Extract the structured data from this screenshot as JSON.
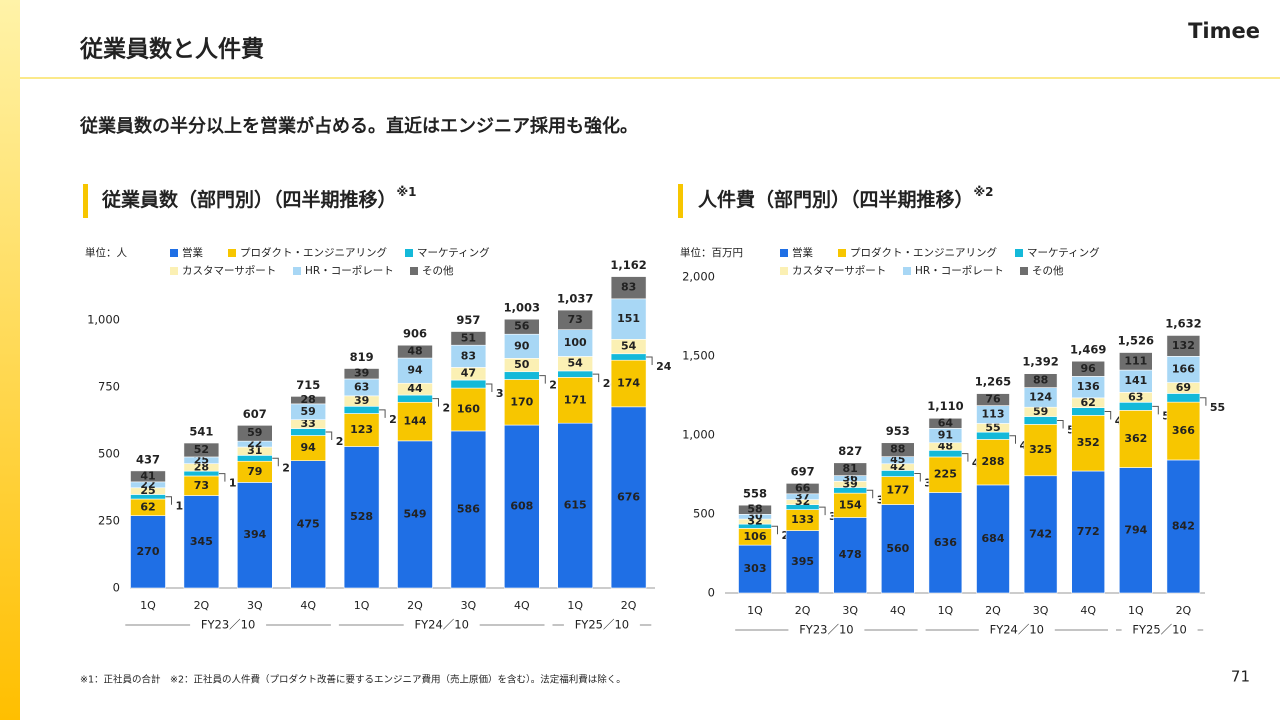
{
  "header": {
    "title": "従業員数と人件費",
    "logo": "Timee",
    "subtitle": "従業員数の半分以上を営業が占める。直近はエンジニア採用も強化。"
  },
  "footnote": "※1：正社員の合計　※2：正社員の人件費（プロダクト改善に要するエンジニア費用（売上原価）を含む）。法定福利費は除く。",
  "page_number": "71",
  "chart_data": [
    {
      "type": "stacked-bar",
      "title": "従業員数（部門別）（四半期推移）",
      "title_note": "※1",
      "unit": "単位：人",
      "categories": [
        "1Q",
        "2Q",
        "3Q",
        "4Q",
        "1Q",
        "2Q",
        "3Q",
        "4Q",
        "1Q",
        "2Q"
      ],
      "groups": [
        {
          "label": "FY23／10",
          "count": 4
        },
        {
          "label": "FY24／10",
          "count": 4
        },
        {
          "label": "FY25／10",
          "count": 2
        }
      ],
      "ylim": [
        0,
        1250
      ],
      "yticks": [
        0,
        250,
        500,
        750,
        {
          "value": 1000,
          "label": "1,000"
        }
      ],
      "grid": false,
      "series": [
        {
          "name": "営業",
          "color": "#1f6fe5",
          "values": [
            270,
            345,
            394,
            475,
            528,
            549,
            586,
            608,
            615,
            676
          ]
        },
        {
          "name": "プロダクト・エンジニアリング",
          "color": "#f7c600",
          "values": [
            62,
            73,
            79,
            94,
            123,
            144,
            160,
            170,
            171,
            174
          ]
        },
        {
          "name": "マーケティング",
          "color": "#14b9d9",
          "values": [
            17,
            18,
            22,
            26,
            27,
            27,
            30,
            29,
            24,
            24
          ]
        },
        {
          "name": "カスタマーサポート",
          "color": "#fbf0b4",
          "values": [
            25,
            28,
            31,
            33,
            39,
            44,
            47,
            50,
            54,
            54
          ]
        },
        {
          "name": "HR・コーポレート",
          "color": "#a8d7f5",
          "values": [
            22,
            25,
            22,
            59,
            63,
            94,
            83,
            90,
            100,
            151
          ]
        },
        {
          "name": "その他",
          "color": "#6e6e6e",
          "values": [
            41,
            52,
            59,
            28,
            39,
            48,
            51,
            56,
            73,
            83
          ]
        }
      ],
      "totals": [
        437,
        541,
        607,
        715,
        819,
        906,
        957,
        1003,
        1037,
        1162
      ],
      "total_labels": [
        "437",
        "541",
        "607",
        "715",
        "819",
        "906",
        "957",
        "1,003",
        "1,037",
        "1,162"
      ]
    },
    {
      "type": "stacked-bar",
      "title": "人件費（部門別）（四半期推移）",
      "title_note": "※2",
      "unit": "単位：百万円",
      "categories": [
        "1Q",
        "2Q",
        "3Q",
        "4Q",
        "1Q",
        "2Q",
        "3Q",
        "4Q",
        "1Q",
        "2Q"
      ],
      "groups": [
        {
          "label": "FY23／10",
          "count": 4
        },
        {
          "label": "FY24／10",
          "count": 4
        },
        {
          "label": "FY25／10",
          "count": 2
        }
      ],
      "ylim": [
        0,
        2000
      ],
      "yticks": [
        0,
        500,
        {
          "value": 1000,
          "label": "1,000"
        },
        {
          "value": 1500,
          "label": "1,500"
        },
        {
          "value": 2000,
          "label": "2,000"
        }
      ],
      "grid": false,
      "series": [
        {
          "name": "営業",
          "color": "#1f6fe5",
          "values": [
            303,
            395,
            478,
            560,
            636,
            684,
            742,
            772,
            794,
            842
          ]
        },
        {
          "name": "プロダクト・エンジニアリング",
          "color": "#f7c600",
          "values": [
            106,
            133,
            154,
            177,
            225,
            288,
            325,
            352,
            362,
            366
          ]
        },
        {
          "name": "マーケティング",
          "color": "#14b9d9",
          "values": [
            27,
            31,
            36,
            39,
            42,
            46,
            50,
            49,
            51,
            55
          ]
        },
        {
          "name": "カスタマーサポート",
          "color": "#fbf0b4",
          "values": [
            32,
            32,
            39,
            42,
            48,
            55,
            59,
            62,
            63,
            69
          ]
        },
        {
          "name": "HR・コーポレート",
          "color": "#a8d7f5",
          "values": [
            30,
            37,
            36,
            45,
            91,
            113,
            124,
            136,
            141,
            166
          ]
        },
        {
          "name": "その他",
          "color": "#6e6e6e",
          "values": [
            58,
            66,
            81,
            88,
            64,
            76,
            88,
            96,
            111,
            132
          ]
        }
      ],
      "totals": [
        558,
        697,
        827,
        953,
        1110,
        1265,
        1392,
        1469,
        1526,
        1632
      ],
      "total_labels": [
        "558",
        "697",
        "827",
        "953",
        "1,110",
        "1,265",
        "1,392",
        "1,469",
        "1,526",
        "1,632"
      ]
    }
  ]
}
